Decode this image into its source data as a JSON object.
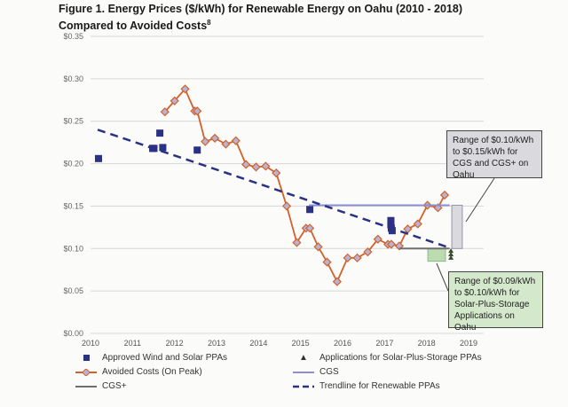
{
  "chart_data": {
    "type": "scatter",
    "title_line1": "Figure 1. Energy Prices ($/kWh) for Renewable Energy on Oahu (2010 - 2018)",
    "title_line2": "Compared to Avoided Costs",
    "title_footnote": "8",
    "xlim": [
      2010,
      2019
    ],
    "ylim": [
      0,
      0.35
    ],
    "x_ticks": [
      "2010",
      "2011",
      "2012",
      "2013",
      "2014",
      "2015",
      "2016",
      "2017",
      "2018",
      "2019"
    ],
    "y_ticks": [
      {
        "v": 0.35,
        "label": "$0.35"
      },
      {
        "v": 0.3,
        "label": "$0.30"
      },
      {
        "v": 0.25,
        "label": "$0.25"
      },
      {
        "v": 0.2,
        "label": "$0.20"
      },
      {
        "v": 0.15,
        "label": "$0.15"
      },
      {
        "v": 0.1,
        "label": "$0.10"
      },
      {
        "v": 0.05,
        "label": "$0.05"
      },
      {
        "v": 0.0,
        "label": "$0.00"
      }
    ],
    "grid": "horizontal",
    "legend_position": "bottom",
    "series": [
      {
        "name": "Approved Wind and Solar PPAs",
        "kind": "markers-square",
        "color": "#2b3183",
        "points": [
          [
            2010.19,
            0.206
          ],
          [
            2011.48,
            0.218
          ],
          [
            2011.51,
            0.218
          ],
          [
            2011.65,
            0.236
          ],
          [
            2011.72,
            0.219
          ],
          [
            2012.54,
            0.216
          ],
          [
            2015.22,
            0.146
          ],
          [
            2017.15,
            0.133
          ],
          [
            2017.15,
            0.128
          ],
          [
            2017.16,
            0.124
          ],
          [
            2017.18,
            0.121
          ]
        ]
      },
      {
        "name": "Avoided Costs (On Peak)",
        "kind": "line-diamond",
        "color": "#d2612a",
        "points": [
          [
            2011.77,
            0.261
          ],
          [
            2012.0,
            0.274
          ],
          [
            2012.25,
            0.288
          ],
          [
            2012.48,
            0.262
          ],
          [
            2012.54,
            0.262
          ],
          [
            2012.73,
            0.226
          ],
          [
            2012.96,
            0.23
          ],
          [
            2013.22,
            0.223
          ],
          [
            2013.46,
            0.227
          ],
          [
            2013.7,
            0.199
          ],
          [
            2013.94,
            0.196
          ],
          [
            2014.17,
            0.197
          ],
          [
            2014.42,
            0.189
          ],
          [
            2014.67,
            0.15
          ],
          [
            2014.91,
            0.107
          ],
          [
            2015.13,
            0.124
          ],
          [
            2015.22,
            0.124
          ],
          [
            2015.42,
            0.102
          ],
          [
            2015.63,
            0.084
          ],
          [
            2015.87,
            0.061
          ],
          [
            2016.12,
            0.089
          ],
          [
            2016.35,
            0.089
          ],
          [
            2016.6,
            0.096
          ],
          [
            2016.84,
            0.111
          ],
          [
            2017.08,
            0.105
          ],
          [
            2017.16,
            0.105
          ],
          [
            2017.35,
            0.103
          ],
          [
            2017.55,
            0.123
          ],
          [
            2017.79,
            0.129
          ],
          [
            2018.02,
            0.151
          ],
          [
            2018.27,
            0.148
          ],
          [
            2018.43,
            0.163
          ]
        ]
      },
      {
        "name": "CGS+",
        "kind": "line",
        "color": "#6e6e6e",
        "points": [
          [
            2017.35,
            0.1
          ],
          [
            2018.55,
            0.1
          ]
        ]
      },
      {
        "name": "Applications for Solar-Plus-Storage PPAs",
        "kind": "markers-triangle",
        "color": "#3a4a2a",
        "points": [
          [
            2018.58,
            0.097
          ],
          [
            2018.58,
            0.093
          ],
          [
            2018.58,
            0.089
          ]
        ]
      },
      {
        "name": "CGS",
        "kind": "line",
        "color": "#8a8fd0",
        "points": [
          [
            2015.2,
            0.151
          ],
          [
            2018.55,
            0.151
          ]
        ]
      },
      {
        "name": "Trendline for Renewable PPAs",
        "kind": "dashed-line",
        "color": "#2b3183",
        "points": [
          [
            2010.17,
            0.24
          ],
          [
            2018.54,
            0.101
          ]
        ]
      }
    ],
    "range_boxes": [
      {
        "kind": "cgs-range",
        "x": [
          2018.6,
          2018.85
        ],
        "y": [
          0.1,
          0.151
        ],
        "fill": "#d9d9de",
        "stroke": "#9a8fb0"
      },
      {
        "kind": "solar-storage-range",
        "x": [
          2018.03,
          2018.45
        ],
        "y": [
          0.085,
          0.1
        ],
        "fill": "#bcdcb0",
        "stroke": "#8cb88a"
      }
    ],
    "annotations": [
      {
        "text": "Range of $0.10/kWh to $0.15/kWh for CGS and CGS+ on Oahu",
        "fill": "#d9d9de"
      },
      {
        "text": "Range of $0.09/kWh to $0.10/kWh for Solar-Plus-Storage Applications on Oahu",
        "fill": "#d4e8cc"
      }
    ]
  }
}
